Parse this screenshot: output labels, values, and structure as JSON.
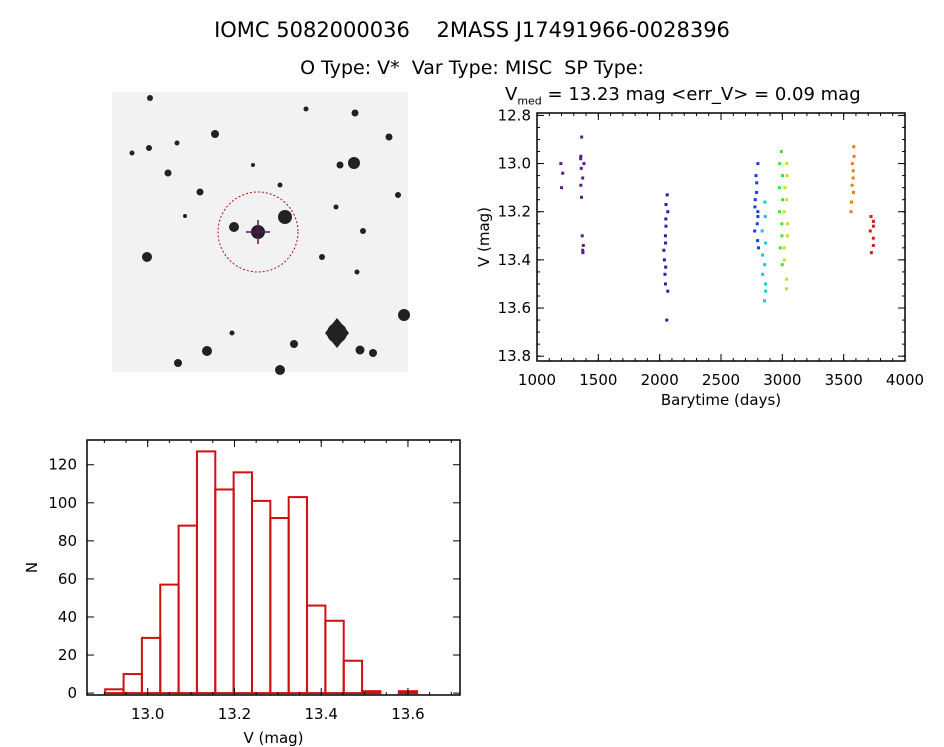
{
  "header": {
    "title_line1": "IOMC 5082000036    2MASS J17491966-0028396",
    "title_line2": "O Type: V*  Var Type: MISC  SP Type:",
    "vmed_prefix": "V",
    "vmed_sub": "med",
    "vmed_rest": " = 13.23 mag <err_V> = 0.09 mag"
  },
  "chart_data": [
    {
      "type": "scatter",
      "title": "V_med = 13.23 mag <err_V> = 0.09 mag",
      "xlabel": "Barytime (days)",
      "ylabel": "V (mag)",
      "xlim": [
        1000,
        4000
      ],
      "ylim": [
        13.82,
        12.79
      ],
      "xticks": [
        1000,
        1500,
        2000,
        2500,
        3000,
        3500,
        4000
      ],
      "yticks": [
        "12.8",
        "13.0",
        "13.2",
        "13.4",
        "13.6",
        "13.8"
      ],
      "series": [
        {
          "color": "#5a1a8a",
          "x": 1210,
          "y": [
            13.0,
            13.04,
            13.1
          ]
        },
        {
          "color": "#5a1a8a",
          "x": 1370,
          "y": [
            12.89,
            12.97,
            12.98,
            13.0,
            13.02,
            13.06,
            13.09,
            13.14,
            13.3,
            13.34,
            13.36,
            13.37
          ]
        },
        {
          "color": "#2a1ab0",
          "x": 2050,
          "y": [
            13.13,
            13.17,
            13.2,
            13.23,
            13.26,
            13.3,
            13.33,
            13.36,
            13.4,
            13.43,
            13.46,
            13.5,
            13.53,
            13.65
          ]
        },
        {
          "color": "#1040e0",
          "x": 2790,
          "y": [
            13.0,
            13.05,
            13.08,
            13.12,
            13.15,
            13.18,
            13.2,
            13.22,
            13.25,
            13.28,
            13.32,
            13.35
          ]
        },
        {
          "color": "#10c8e0",
          "x": 2850,
          "y": [
            13.16,
            13.22,
            13.28,
            13.33,
            13.38,
            13.42,
            13.46,
            13.5,
            13.53,
            13.57
          ]
        },
        {
          "color": "#40e040",
          "x": 2990,
          "y": [
            12.95,
            13.0,
            13.05,
            13.1,
            13.15,
            13.2,
            13.25,
            13.3,
            13.35,
            13.42
          ]
        },
        {
          "color": "#c0e020",
          "x": 3030,
          "y": [
            13.0,
            13.05,
            13.1,
            13.15,
            13.2,
            13.25,
            13.3,
            13.35,
            13.4,
            13.48,
            13.52
          ]
        },
        {
          "color": "#e08010",
          "x": 3570,
          "y": [
            12.93,
            12.97,
            13.0,
            13.03,
            13.06,
            13.09,
            13.12,
            13.16,
            13.2
          ]
        },
        {
          "color": "#d02010",
          "x": 3730,
          "y": [
            13.22,
            13.24,
            13.26,
            13.28,
            13.31,
            13.34,
            13.37
          ]
        }
      ]
    },
    {
      "type": "bar",
      "xlabel": "V (mag)",
      "ylabel": "N",
      "xlim": [
        12.86,
        13.72
      ],
      "ylim": [
        -1,
        133
      ],
      "xticks": [
        "13.0",
        "13.2",
        "13.4",
        "13.6"
      ],
      "yticks": [
        "0",
        "20",
        "40",
        "60",
        "80",
        "100",
        "120"
      ],
      "bin_start": 12.902,
      "bin_width": 0.0423,
      "values": [
        2,
        10,
        29,
        57,
        88,
        127,
        107,
        116,
        101,
        92,
        103,
        46,
        38,
        17,
        1,
        0,
        1
      ],
      "color": "#d01010"
    }
  ]
}
